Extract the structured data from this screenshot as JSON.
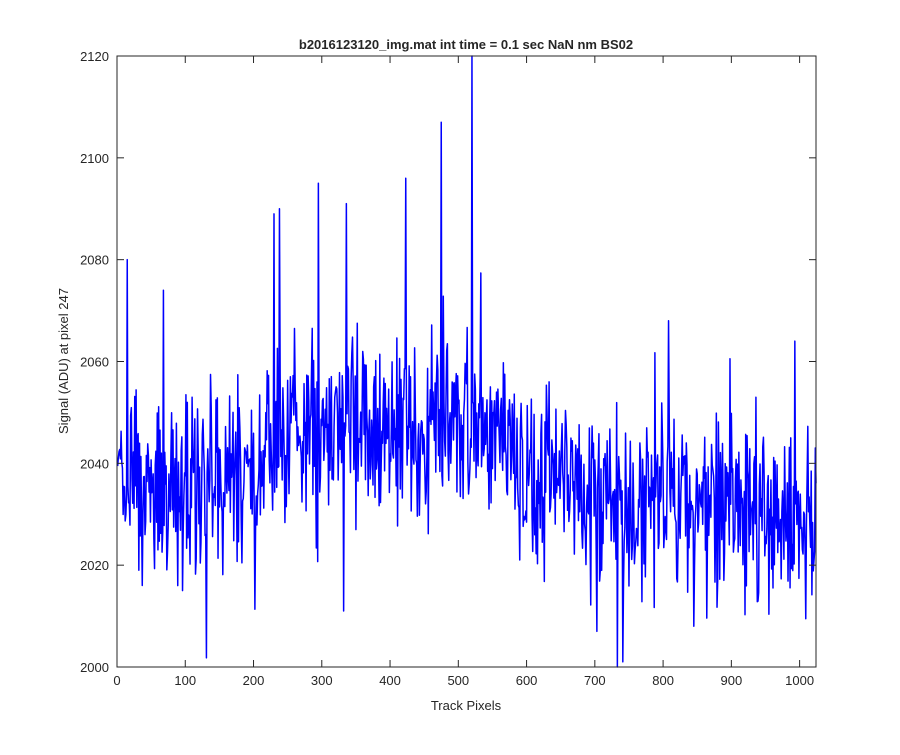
{
  "chart_data": {
    "type": "line",
    "title": "b2016123120_img.mat int time = 0.1 sec  NaN nm BS02",
    "xlabel": "Track Pixels",
    "ylabel": "Signal (ADU) at pixel 247",
    "xlim": [
      0,
      1024
    ],
    "ylim": [
      2000,
      2120
    ],
    "xticks": [
      0,
      100,
      200,
      300,
      400,
      500,
      600,
      700,
      800,
      900,
      1000
    ],
    "yticks": [
      2000,
      2020,
      2040,
      2060,
      2080,
      2100,
      2120
    ],
    "grid": false,
    "series": [
      {
        "color": "#0000ff",
        "x_start": 1,
        "x_step": 1,
        "seed": 20161231,
        "noise_sd": 9,
        "envelope": [
          [
            0,
            2036
          ],
          [
            60,
            2034
          ],
          [
            100,
            2036
          ],
          [
            150,
            2037
          ],
          [
            200,
            2036
          ],
          [
            225,
            2042
          ],
          [
            300,
            2046
          ],
          [
            400,
            2046
          ],
          [
            450,
            2046
          ],
          [
            500,
            2048
          ],
          [
            520,
            2050
          ],
          [
            560,
            2044
          ],
          [
            600,
            2038
          ],
          [
            650,
            2037
          ],
          [
            700,
            2034
          ],
          [
            760,
            2032
          ],
          [
            800,
            2033
          ],
          [
            900,
            2031
          ],
          [
            1024,
            2030
          ]
        ],
        "spikes": [
          [
            15,
            2080
          ],
          [
            37,
            2016
          ],
          [
            68,
            2074
          ],
          [
            96,
            2015
          ],
          [
            230,
            2089
          ],
          [
            238,
            2090
          ],
          [
            295,
            2095
          ],
          [
            332,
            2011
          ],
          [
            336,
            2091
          ],
          [
            423,
            2096
          ],
          [
            475,
            2107
          ],
          [
            520,
            2120
          ],
          [
            703,
            2007
          ],
          [
            733,
            2000
          ],
          [
            741,
            2001
          ],
          [
            808,
            2068
          ],
          [
            845,
            2008
          ],
          [
            993,
            2064
          ]
        ],
        "point_count": 1024
      }
    ]
  }
}
